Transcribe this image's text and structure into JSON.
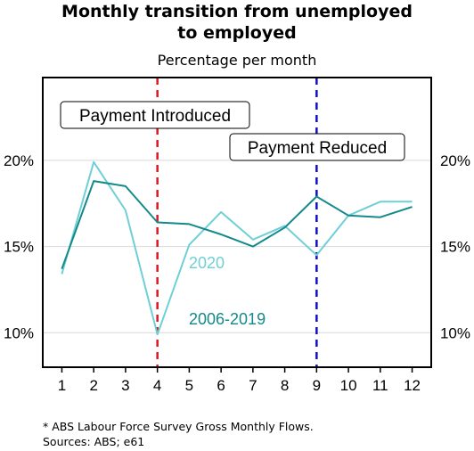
{
  "chart_data": {
    "type": "line",
    "title_line1": "Monthly transition from unemployed",
    "title_line2": "to employed",
    "subtitle": "Percentage per month",
    "x": [
      1,
      2,
      3,
      4,
      5,
      6,
      7,
      8,
      9,
      10,
      11,
      12
    ],
    "x_tick_labels": [
      "1",
      "2",
      "3",
      "4",
      "5",
      "6",
      "7",
      "8",
      "9",
      "10",
      "11",
      "12"
    ],
    "xlim": [
      0.4,
      12.6
    ],
    "ylim": [
      8,
      24.8
    ],
    "y_ticks": [
      10,
      15,
      20
    ],
    "y_tick_labels": [
      "10%",
      "15%",
      "20%"
    ],
    "grid": true,
    "series": [
      {
        "name": "2020",
        "color": "#6fcfd6",
        "values": [
          13.4,
          19.9,
          17.1,
          9.9,
          15.1,
          17.0,
          15.4,
          16.2,
          14.5,
          16.8,
          17.6,
          17.6
        ]
      },
      {
        "name": "2006-2019",
        "color": "#138a8a",
        "values": [
          13.7,
          18.8,
          18.5,
          16.4,
          16.3,
          15.7,
          15.0,
          16.1,
          17.9,
          16.8,
          16.7,
          17.3
        ]
      }
    ],
    "vlines": [
      {
        "x": 4,
        "color": "#e0161e",
        "label": "Payment Introduced"
      },
      {
        "x": 9,
        "color": "#1010c8",
        "label": "Payment Reduced"
      }
    ]
  },
  "footer": {
    "note": "* ABS Labour Force Survey Gross Monthly Flows.",
    "sources": "Sources: ABS; e61"
  }
}
